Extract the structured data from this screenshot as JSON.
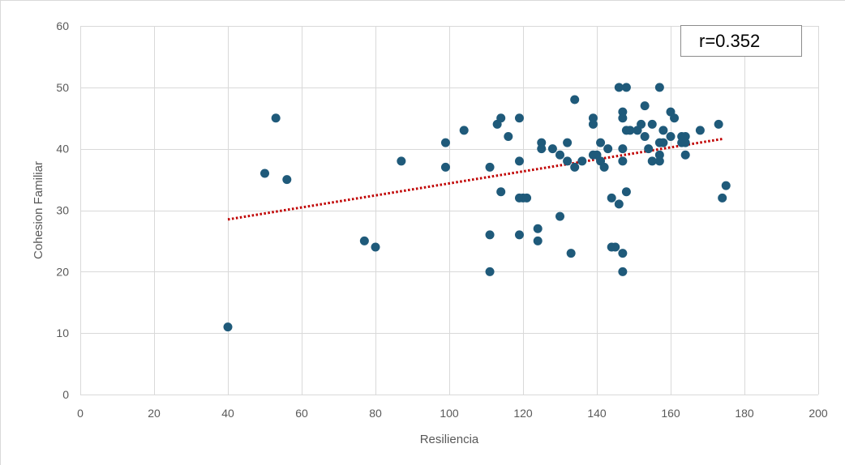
{
  "chart_data": {
    "type": "scatter",
    "title": "",
    "xlabel": "Resiliencia",
    "ylabel": "Cohesion Familiar",
    "xlim": [
      0,
      200
    ],
    "ylim": [
      0,
      60
    ],
    "xticks": [
      0,
      20,
      40,
      60,
      80,
      100,
      120,
      140,
      160,
      180,
      200
    ],
    "yticks": [
      0,
      10,
      20,
      30,
      40,
      50,
      60
    ],
    "grid": true,
    "legend": "none",
    "annotation": "r=0.352",
    "colors": {
      "points": "#1f5a7a",
      "trendline": "#c00000",
      "grid": "#d9d9d9",
      "text": "#595959"
    },
    "trendline": {
      "type": "linear",
      "style": "dotted",
      "x": [
        40,
        174
      ],
      "y": [
        28.5,
        41.6
      ]
    },
    "series": [
      {
        "points": [
          [
            40,
            11
          ],
          [
            50,
            36
          ],
          [
            53,
            45
          ],
          [
            56,
            35
          ],
          [
            77,
            25
          ],
          [
            80,
            24
          ],
          [
            87,
            38
          ],
          [
            99,
            41
          ],
          [
            99,
            37
          ],
          [
            104,
            43
          ],
          [
            111,
            37
          ],
          [
            111,
            26
          ],
          [
            111,
            20
          ],
          [
            113,
            44
          ],
          [
            114,
            45
          ],
          [
            114,
            33
          ],
          [
            116,
            42
          ],
          [
            119,
            45
          ],
          [
            119,
            38
          ],
          [
            119,
            32
          ],
          [
            119,
            26
          ],
          [
            120,
            32
          ],
          [
            121,
            32
          ],
          [
            124,
            27
          ],
          [
            124,
            25
          ],
          [
            125,
            41
          ],
          [
            125,
            40
          ],
          [
            128,
            40
          ],
          [
            130,
            39
          ],
          [
            130,
            29
          ],
          [
            132,
            41
          ],
          [
            132,
            38
          ],
          [
            133,
            23
          ],
          [
            134,
            48
          ],
          [
            134,
            37
          ],
          [
            136,
            38
          ],
          [
            139,
            45
          ],
          [
            139,
            44
          ],
          [
            139,
            39
          ],
          [
            140,
            39
          ],
          [
            141,
            41
          ],
          [
            141,
            38
          ],
          [
            142,
            37
          ],
          [
            143,
            40
          ],
          [
            144,
            32
          ],
          [
            144,
            24
          ],
          [
            145,
            24
          ],
          [
            146,
            50
          ],
          [
            146,
            31
          ],
          [
            147,
            46
          ],
          [
            147,
            45
          ],
          [
            147,
            40
          ],
          [
            147,
            38
          ],
          [
            147,
            23
          ],
          [
            147,
            20
          ],
          [
            148,
            50
          ],
          [
            148,
            43
          ],
          [
            148,
            33
          ],
          [
            149,
            43
          ],
          [
            151,
            43
          ],
          [
            152,
            44
          ],
          [
            153,
            47
          ],
          [
            153,
            42
          ],
          [
            154,
            40
          ],
          [
            155,
            44
          ],
          [
            155,
            38
          ],
          [
            157,
            50
          ],
          [
            157,
            41
          ],
          [
            157,
            39
          ],
          [
            157,
            38
          ],
          [
            158,
            43
          ],
          [
            158,
            41
          ],
          [
            160,
            46
          ],
          [
            160,
            42
          ],
          [
            161,
            45
          ],
          [
            163,
            42
          ],
          [
            163,
            41
          ],
          [
            164,
            42
          ],
          [
            164,
            41
          ],
          [
            164,
            39
          ],
          [
            168,
            43
          ],
          [
            173,
            44
          ],
          [
            174,
            32
          ],
          [
            175,
            34
          ]
        ]
      }
    ]
  }
}
